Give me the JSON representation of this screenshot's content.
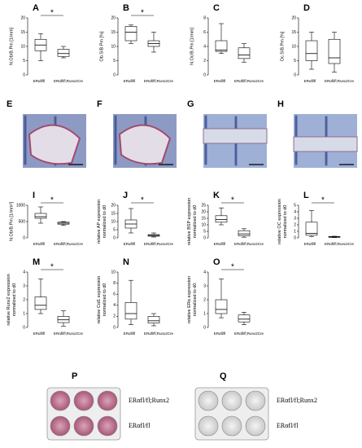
{
  "chart_data": [
    {
      "type": "box",
      "panel": "A",
      "ylabel": [
        "N.Ob/B.Pm [1/mm]"
      ],
      "categories": [
        "ERαfl/fl",
        "ERαfl/fl;Runx2Cre"
      ],
      "stats": [
        {
          "min": 5,
          "q1": 8.5,
          "median": 10.5,
          "q3": 12.5,
          "max": 14.5
        },
        {
          "min": 6,
          "q1": 6.5,
          "median": 7.5,
          "q3": 9,
          "max": 10
        }
      ],
      "ylim": [
        0,
        20
      ],
      "yticks": [
        0,
        5,
        10,
        15,
        20
      ],
      "significance": "*"
    },
    {
      "type": "box",
      "panel": "B",
      "ylabel": [
        "Ob.S/B.Pm [%]"
      ],
      "categories": [
        "ERαfl/fl",
        "ERαfl/fl;Runx2Cre"
      ],
      "stats": [
        {
          "min": 11,
          "q1": 12,
          "median": 15,
          "q3": 17,
          "max": 17.5
        },
        {
          "min": 8,
          "q1": 10,
          "median": 11,
          "q3": 12,
          "max": 15
        }
      ],
      "ylim": [
        0,
        20
      ],
      "yticks": [
        0,
        5,
        10,
        15,
        20
      ],
      "significance": "*"
    },
    {
      "type": "box",
      "panel": "C",
      "ylabel": [
        "N.Oc/B.Pm [1/mm]"
      ],
      "categories": [
        "ERαfl/fl",
        "ERαfl/fl;Runx2Cre"
      ],
      "stats": [
        {
          "min": 3,
          "q1": 3.3,
          "median": 3.5,
          "q3": 4.8,
          "max": 7.2
        },
        {
          "min": 1.8,
          "q1": 2.3,
          "median": 2.8,
          "q3": 3.8,
          "max": 4.4
        }
      ],
      "ylim": [
        0,
        8
      ],
      "yticks": [
        0,
        2,
        4,
        6,
        8
      ]
    },
    {
      "type": "box",
      "panel": "D",
      "ylabel": [
        "Oc.S/B.Pm [%]"
      ],
      "categories": [
        "ERαfl/fl",
        "ERαfl/fl;Runx2Cre"
      ],
      "stats": [
        {
          "min": 2,
          "q1": 5,
          "median": 7.5,
          "q3": 12,
          "max": 15
        },
        {
          "min": 1,
          "q1": 4,
          "median": 6,
          "q3": 12.5,
          "max": 15
        }
      ],
      "ylim": [
        0,
        20
      ],
      "yticks": [
        0,
        5,
        10,
        15,
        20
      ]
    },
    {
      "type": "box",
      "panel": "I",
      "ylabel": [
        "N.Ob/B.Pm [1/mm²]"
      ],
      "categories": [
        "ERαfl/fl",
        "ERαfl/fl;Runx2Cre"
      ],
      "stats": [
        {
          "min": 450,
          "q1": 600,
          "median": 650,
          "q3": 750,
          "max": 950
        },
        {
          "min": 380,
          "q1": 420,
          "median": 450,
          "q3": 480,
          "max": 500
        }
      ],
      "ylim": [
        0,
        1000
      ],
      "yticks": [
        0,
        500,
        1000
      ],
      "significance": "*"
    },
    {
      "type": "box",
      "panel": "J",
      "ylabel": [
        "relative AP expression",
        "normalized to d0"
      ],
      "categories": [
        "ERαfl/fl",
        "ERαfl/fl;Runx2Cre"
      ],
      "stats": [
        {
          "min": 3,
          "q1": 6,
          "median": 8.5,
          "q3": 11,
          "max": 18
        },
        {
          "min": 0.5,
          "q1": 1,
          "median": 1.5,
          "q3": 2,
          "max": 3
        }
      ],
      "ylim": [
        0,
        20
      ],
      "yticks": [
        0,
        5,
        10,
        15,
        20
      ],
      "significance": "*"
    },
    {
      "type": "box",
      "panel": "K",
      "ylabel": [
        "relative BSP expression",
        "normalized to d0"
      ],
      "categories": [
        "ERαfl/fl",
        "ERαfl/fl;Runx2Cre"
      ],
      "stats": [
        {
          "min": 10,
          "q1": 12,
          "median": 14,
          "q3": 17,
          "max": 23
        },
        {
          "min": 0.5,
          "q1": 1.5,
          "median": 3,
          "q3": 5.5,
          "max": 7
        }
      ],
      "ylim": [
        0,
        25
      ],
      "yticks": [
        0,
        5,
        10,
        15,
        20,
        25
      ],
      "significance": "*"
    },
    {
      "type": "box",
      "panel": "L",
      "ylabel": [
        "relative OC expression",
        "normalized to d0"
      ],
      "categories": [
        "ERαfl/fl",
        "ERαfl/fl;Runx2Cre"
      ],
      "stats": [
        {
          "min": 0.2,
          "q1": 0.4,
          "median": 0.7,
          "q3": 2.4,
          "max": 4.2
        },
        {
          "min": 0.05,
          "q1": 0.08,
          "median": 0.15,
          "q3": 0.2,
          "max": 0.25
        }
      ],
      "ylim": [
        0,
        5
      ],
      "yticks": [
        0,
        1,
        2,
        3,
        4,
        5
      ],
      "significance": "*"
    },
    {
      "type": "box",
      "panel": "M",
      "ylabel": [
        "relative Runx2 expression",
        "normalized to d0"
      ],
      "categories": [
        "ERαfl/fl",
        "ERαfl/fl;Runx2Cre"
      ],
      "stats": [
        {
          "min": 1,
          "q1": 1.3,
          "median": 1.6,
          "q3": 2.2,
          "max": 3.5
        },
        {
          "min": 0.1,
          "q1": 0.35,
          "median": 0.55,
          "q3": 0.8,
          "max": 1.2
        }
      ],
      "ylim": [
        0,
        4
      ],
      "yticks": [
        0,
        1,
        2,
        3,
        4
      ],
      "significance": "*"
    },
    {
      "type": "box",
      "panel": "N",
      "ylabel": [
        "relative Col1 expression",
        "normalized to d0"
      ],
      "categories": [
        "ERαfl/fl",
        "ERαfl/fl;Runx2Cre"
      ],
      "stats": [
        {
          "min": 0.5,
          "q1": 1.5,
          "median": 2.5,
          "q3": 4.5,
          "max": 8.5
        },
        {
          "min": 0.3,
          "q1": 0.8,
          "median": 1.2,
          "q3": 2,
          "max": 2.5
        }
      ],
      "ylim": [
        0,
        10
      ],
      "yticks": [
        0,
        2,
        4,
        6,
        8,
        10
      ]
    },
    {
      "type": "box",
      "panel": "O",
      "ylabel": [
        "relative ERα expression",
        "normalized to d0"
      ],
      "categories": [
        "ERαfl/fl",
        "ERαfl/fl;Runx2Cre"
      ],
      "stats": [
        {
          "min": 0.7,
          "q1": 1,
          "median": 1.3,
          "q3": 2,
          "max": 3.5
        },
        {
          "min": 0.2,
          "q1": 0.4,
          "median": 0.6,
          "q3": 0.9,
          "max": 1.1
        }
      ],
      "ylim": [
        0,
        4
      ],
      "yticks": [
        0,
        1,
        2,
        3,
        4
      ],
      "significance": "*"
    }
  ],
  "histology": [
    "E",
    "F",
    "G",
    "H"
  ],
  "plates": [
    {
      "panel": "P",
      "labels": [
        "ERαfl/fl;Runx2",
        "ERαfl/fl"
      ]
    },
    {
      "panel": "Q",
      "labels": [
        "ERαfl/fl;Runx2",
        "ERαfl/fl"
      ]
    }
  ]
}
